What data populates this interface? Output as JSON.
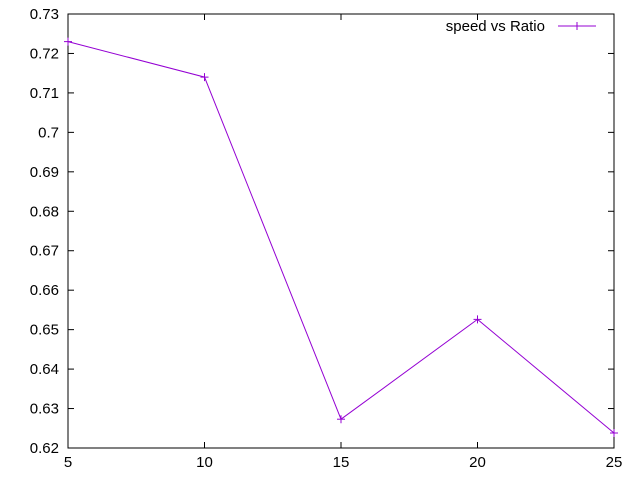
{
  "chart_data": {
    "type": "line",
    "title": "",
    "xlabel": "",
    "ylabel": "",
    "xlim": [
      5,
      25
    ],
    "ylim": [
      0.62,
      0.73
    ],
    "x_ticks": [
      5,
      10,
      15,
      20,
      25
    ],
    "x_tick_labels": [
      "5",
      "10",
      "15",
      "20",
      "25"
    ],
    "y_ticks": [
      0.62,
      0.63,
      0.64,
      0.65,
      0.66,
      0.67,
      0.68,
      0.69,
      0.7,
      0.71,
      0.72,
      0.73
    ],
    "y_tick_labels": [
      "0.62",
      "0.63",
      "0.64",
      "0.65",
      "0.66",
      "0.67",
      "0.68",
      "0.69",
      "0.7",
      "0.71",
      "0.72",
      "0.73"
    ],
    "grid": false,
    "legend_position": "top-right",
    "series": [
      {
        "name": "speed vs Ratio",
        "color": "#9400d3",
        "marker": "plus",
        "x": [
          5,
          10,
          15,
          20,
          25
        ],
        "y": [
          0.723,
          0.714,
          0.6273,
          0.6526,
          0.6238
        ]
      }
    ]
  }
}
